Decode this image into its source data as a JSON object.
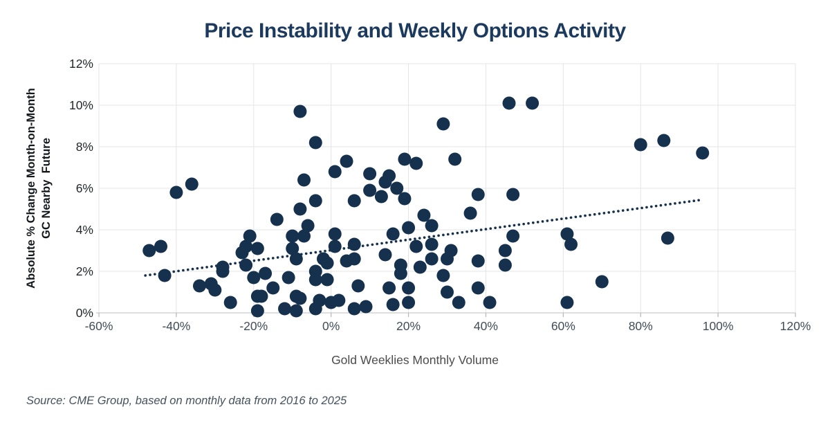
{
  "title": "Price Instability and Weekly Options Activity",
  "source_note": "Source: CME Group, based on monthly data from 2016 to 2025",
  "colors": {
    "navy": "#16314d",
    "title": "#1b3a5e",
    "grid": "#e4e4e4",
    "baseline": "#c9c9c9",
    "tickmark": "#b5b5b5",
    "xtick_text": "#3f4d59",
    "ytick_text": "#22272c",
    "xlabel_text": "#4c4c4c",
    "source_text": "#44525e"
  },
  "chart_data": {
    "type": "scatter",
    "title": "Price Instability and Weekly Options Activity",
    "xlabel": "Gold Weeklies Monthly Volume",
    "ylabel_line1": "Absolute % Change Month-on-Month",
    "ylabel_line2": "GC Nearby  Future",
    "xlim": [
      -60,
      120
    ],
    "ylim": [
      0,
      12
    ],
    "x_ticks": [
      -60,
      -40,
      -20,
      0,
      20,
      40,
      60,
      80,
      100,
      120
    ],
    "x_tick_labels": [
      "-60%",
      "-40%",
      "-20%",
      "0%",
      "20%",
      "40%",
      "60%",
      "80%",
      "100%",
      "120%"
    ],
    "y_ticks": [
      0,
      2,
      4,
      6,
      8,
      10,
      12
    ],
    "y_tick_labels": [
      "0%",
      "2%",
      "4%",
      "6%",
      "8%",
      "10%",
      "12%"
    ],
    "grid": true,
    "legend": "none",
    "points": [
      [
        -47,
        3.0
      ],
      [
        -44,
        3.2
      ],
      [
        -43,
        1.8
      ],
      [
        -40,
        5.8
      ],
      [
        -36,
        6.2
      ],
      [
        -34,
        1.3
      ],
      [
        -31,
        1.4
      ],
      [
        -30,
        1.1
      ],
      [
        -28,
        2.2
      ],
      [
        -28,
        2.0
      ],
      [
        -26,
        0.5
      ],
      [
        -23,
        2.9
      ],
      [
        -22,
        3.2
      ],
      [
        -22,
        2.3
      ],
      [
        -21,
        3.7
      ],
      [
        -19,
        3.1
      ],
      [
        -20,
        1.7
      ],
      [
        -17,
        1.9
      ],
      [
        -19,
        0.8
      ],
      [
        -18,
        0.8
      ],
      [
        -19,
        0.1
      ],
      [
        -15,
        1.2
      ],
      [
        -14,
        4.5
      ],
      [
        -12,
        0.2
      ],
      [
        -11,
        1.7
      ],
      [
        -10,
        3.7
      ],
      [
        -10,
        3.1
      ],
      [
        -9,
        2.6
      ],
      [
        -9,
        0.8
      ],
      [
        -8,
        0.7
      ],
      [
        -9,
        0.1
      ],
      [
        -8,
        9.7
      ],
      [
        -7,
        6.4
      ],
      [
        -8,
        5.0
      ],
      [
        -7,
        3.7
      ],
      [
        -6,
        4.2
      ],
      [
        -4,
        8.2
      ],
      [
        -4,
        5.4
      ],
      [
        -4,
        2.0
      ],
      [
        -4,
        1.6
      ],
      [
        -1,
        1.6
      ],
      [
        -2,
        2.6
      ],
      [
        -1,
        2.4
      ],
      [
        -3,
        0.6
      ],
      [
        -4,
        0.2
      ],
      [
        0,
        0.5
      ],
      [
        1,
        6.8
      ],
      [
        4,
        7.3
      ],
      [
        1,
        3.8
      ],
      [
        1,
        3.2
      ],
      [
        4,
        2.5
      ],
      [
        6,
        2.6
      ],
      [
        6,
        3.3
      ],
      [
        6,
        5.4
      ],
      [
        2,
        0.6
      ],
      [
        6,
        0.2
      ],
      [
        9,
        0.3
      ],
      [
        7,
        1.3
      ],
      [
        10,
        6.7
      ],
      [
        10,
        5.9
      ],
      [
        13,
        5.6
      ],
      [
        15,
        6.6
      ],
      [
        14,
        6.3
      ],
      [
        17,
        6.0
      ],
      [
        19,
        7.4
      ],
      [
        19,
        5.5
      ],
      [
        16,
        3.8
      ],
      [
        14,
        2.8
      ],
      [
        18,
        2.3
      ],
      [
        18,
        1.9
      ],
      [
        15,
        1.2
      ],
      [
        16,
        0.4
      ],
      [
        20,
        1.2
      ],
      [
        20,
        0.5
      ],
      [
        22,
        7.2
      ],
      [
        24,
        4.7
      ],
      [
        26,
        4.2
      ],
      [
        20,
        4.1
      ],
      [
        22,
        3.2
      ],
      [
        26,
        3.3
      ],
      [
        26,
        2.6
      ],
      [
        23,
        2.2
      ],
      [
        29,
        9.1
      ],
      [
        29,
        1.8
      ],
      [
        30,
        1.0
      ],
      [
        32,
        7.4
      ],
      [
        31,
        3.0
      ],
      [
        30,
        2.6
      ],
      [
        33,
        0.5
      ],
      [
        36,
        4.8
      ],
      [
        38,
        5.7
      ],
      [
        38,
        2.5
      ],
      [
        38,
        1.2
      ],
      [
        41,
        0.5
      ],
      [
        45,
        3.0
      ],
      [
        45,
        2.3
      ],
      [
        47,
        5.7
      ],
      [
        47,
        3.7
      ],
      [
        46,
        10.1
      ],
      [
        52,
        10.1
      ],
      [
        61,
        3.8
      ],
      [
        62,
        3.3
      ],
      [
        61,
        0.5
      ],
      [
        70,
        1.5
      ],
      [
        80,
        8.1
      ],
      [
        86,
        8.3
      ],
      [
        87,
        3.6
      ],
      [
        96,
        7.7
      ]
    ],
    "trendline": {
      "style": "dotted",
      "x1": -48,
      "y1": 1.8,
      "x2": 96,
      "y2": 5.45
    }
  }
}
